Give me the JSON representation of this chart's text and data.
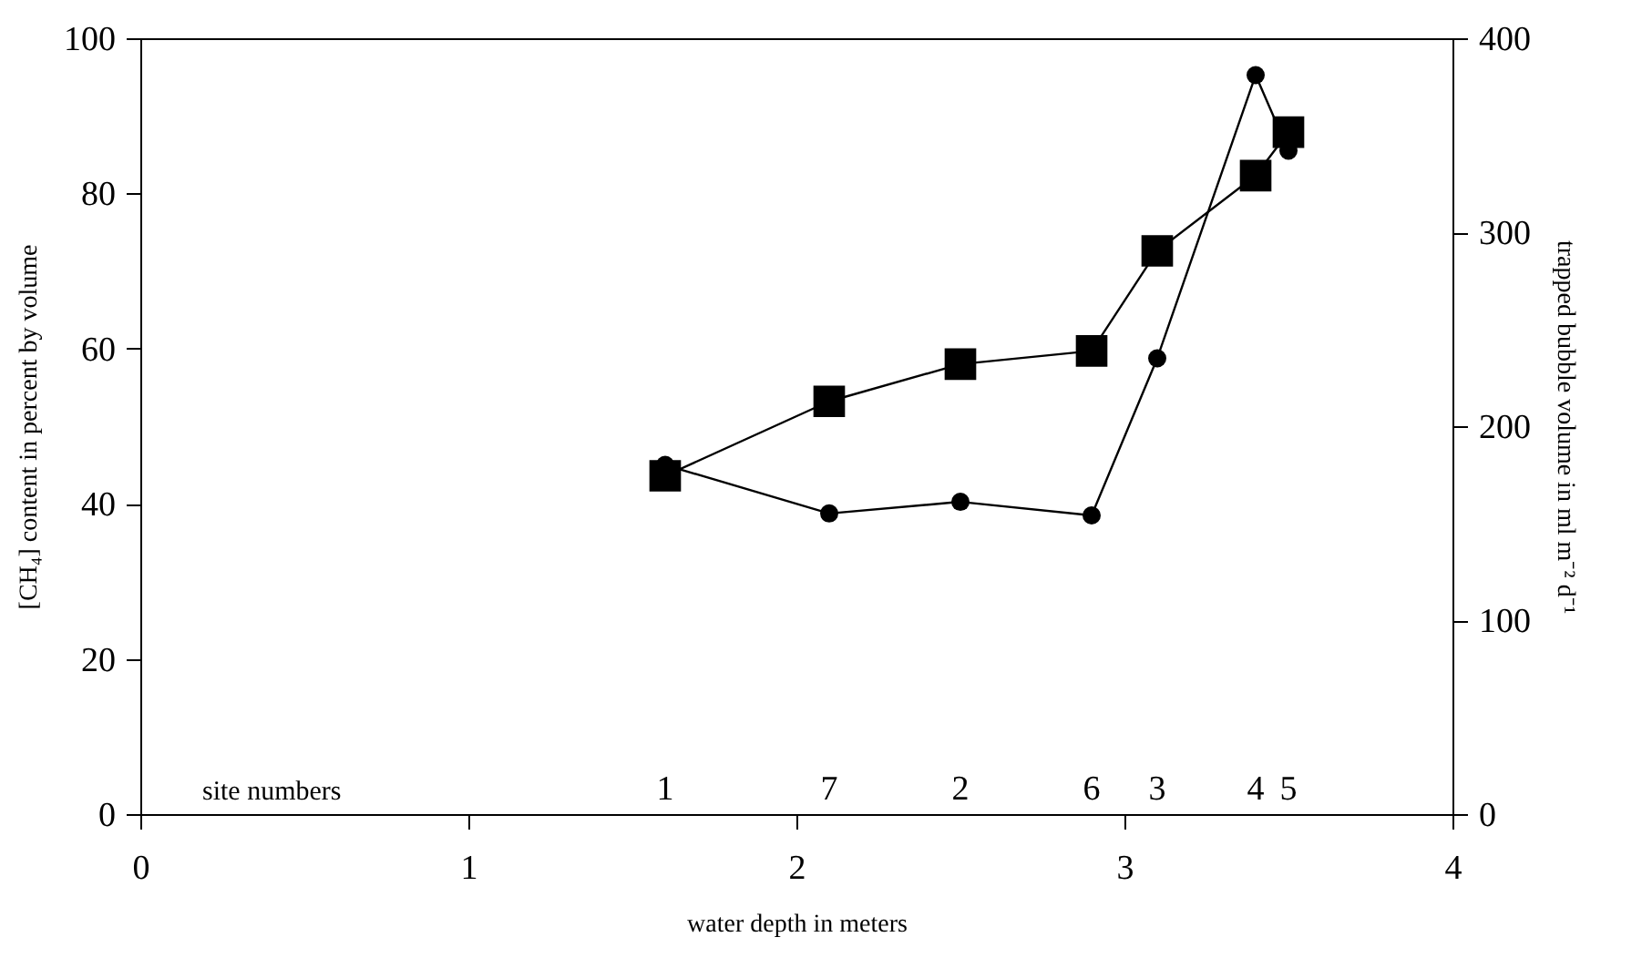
{
  "chart_data": {
    "type": "line",
    "xlabel": "water depth in meters",
    "ylabel": "[CH₄] content in percent by volume",
    "y2label": "trapped bubble volume in ml m⁻² d⁻¹",
    "x": [
      1.6,
      2.1,
      2.5,
      2.9,
      3.1,
      3.4,
      3.5
    ],
    "series": [
      {
        "color": "#000000",
        "marker": "square",
        "values": [
          43.6,
          53.2,
          58,
          59.7,
          72.6,
          82.3,
          87.9
        ]
      },
      {
        "color": "#000000",
        "marker": "circle",
        "axis": "y2",
        "values": [
          180,
          155,
          161,
          154,
          235,
          381,
          342
        ]
      }
    ],
    "xlim": [
      0,
      4
    ],
    "xticks": [
      0,
      1,
      2,
      3,
      4
    ],
    "ylim": [
      0,
      100
    ],
    "yticks": [
      0,
      20,
      40,
      60,
      80,
      100
    ],
    "y2lim": [
      0,
      400
    ],
    "y2ticks": [
      0,
      100,
      200,
      300,
      400
    ],
    "grid": false,
    "line_style": "solid",
    "annotations": [
      "site numbers",
      "1",
      "7",
      "2",
      "6",
      "3",
      "4",
      "5"
    ]
  }
}
